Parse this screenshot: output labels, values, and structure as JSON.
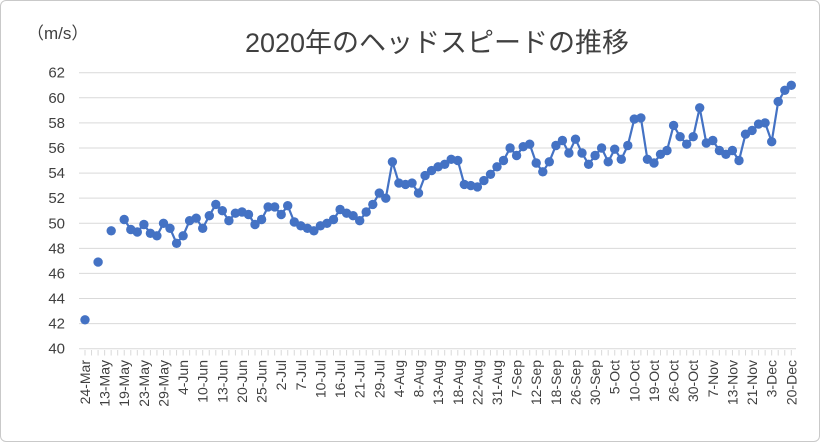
{
  "chart_data": {
    "type": "line",
    "title": "2020年のヘッドスピードの推移",
    "unit_label": "（m/s）",
    "ylabel": "",
    "xlabel": "",
    "ylim": [
      40,
      62
    ],
    "ytick_step": 2,
    "grid": "on",
    "legend": "none",
    "marker_color": "#4472C4",
    "line_color": "#4472C4",
    "grid_color": "#d9d9d9",
    "tick_color": "#d9d9d9",
    "text_color": "#404040",
    "x_label_interval": 3,
    "x_tick_labels": [
      "24-Mar",
      "13-May",
      "19-May",
      "23-May",
      "29-May",
      "4-Jun",
      "10-Jun",
      "13-Jun",
      "20-Jun",
      "25-Jun",
      "2-Jul",
      "7-Jul",
      "10-Jul",
      "16-Jul",
      "21-Jul",
      "29-Jul",
      "4-Aug",
      "8-Aug",
      "13-Aug",
      "18-Aug",
      "22-Aug",
      "31-Aug",
      "7-Sep",
      "12-Sep",
      "18-Sep",
      "26-Sep",
      "30-Sep",
      "5-Oct",
      "10-Oct",
      "19-Oct",
      "26-Oct",
      "30-Oct",
      "7-Nov",
      "13-Nov",
      "21-Nov",
      "3-Dec",
      "20-Dec"
    ],
    "values": [
      42.3,
      null,
      46.9,
      null,
      49.4,
      null,
      50.3,
      49.5,
      49.3,
      49.9,
      49.2,
      49.0,
      50.0,
      49.6,
      48.4,
      49.0,
      50.2,
      50.4,
      49.6,
      50.6,
      51.5,
      51.0,
      50.2,
      50.8,
      50.9,
      50.7,
      49.9,
      50.3,
      51.3,
      51.3,
      50.7,
      51.4,
      50.1,
      49.8,
      49.6,
      49.4,
      49.8,
      50.0,
      50.3,
      51.1,
      50.8,
      50.6,
      50.2,
      50.9,
      51.5,
      52.4,
      52.0,
      54.9,
      53.2,
      53.1,
      53.2,
      52.4,
      53.8,
      54.2,
      54.5,
      54.7,
      55.1,
      55.0,
      53.1,
      53.0,
      52.9,
      53.4,
      53.9,
      54.5,
      55.0,
      56.0,
      55.4,
      56.1,
      56.3,
      54.8,
      54.1,
      54.9,
      56.2,
      56.6,
      55.6,
      56.7,
      55.6,
      54.7,
      55.4,
      56.0,
      54.9,
      55.9,
      55.1,
      56.2,
      58.3,
      58.4,
      55.1,
      54.8,
      55.5,
      55.8,
      57.8,
      56.9,
      56.3,
      56.9,
      59.2,
      56.4,
      56.6,
      55.8,
      55.5,
      55.8,
      55.0,
      57.1,
      57.4,
      57.9,
      58.0,
      56.5,
      59.7,
      60.6,
      61.0
    ]
  }
}
